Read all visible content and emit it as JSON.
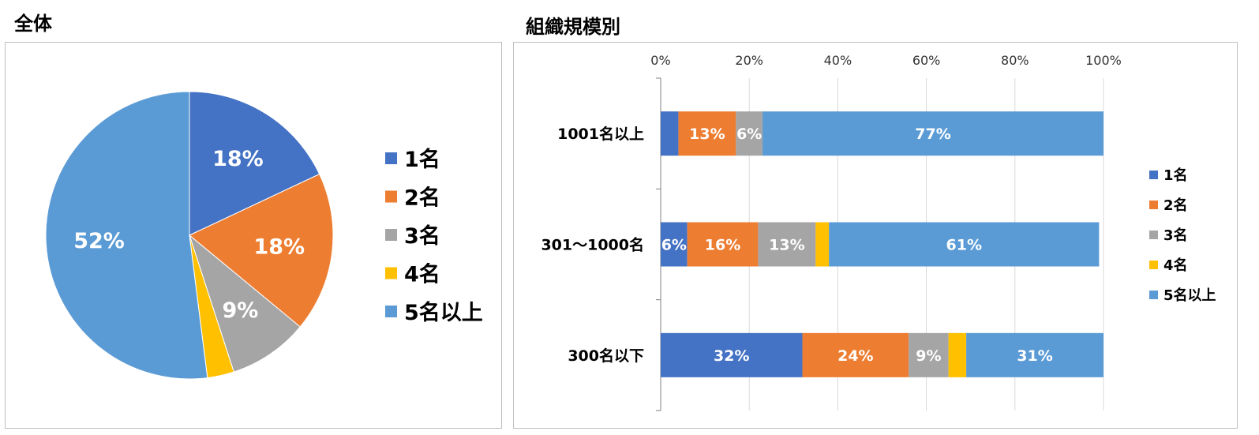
{
  "colors": {
    "series": [
      "#4472C4",
      "#ED7D31",
      "#A5A5A5",
      "#FFC000",
      "#5B9BD5"
    ],
    "gridline": "#D9D9D9",
    "axis": "#808080"
  },
  "chart_data": [
    {
      "type": "pie",
      "title": "全体",
      "categories": [
        "1名",
        "2名",
        "3名",
        "4名",
        "5名以上"
      ],
      "values": [
        18,
        18,
        9,
        3,
        52
      ],
      "data_labels": [
        "18%",
        "18%",
        "9%",
        "",
        "52%"
      ],
      "legend": "right"
    },
    {
      "type": "bar",
      "orientation": "horizontal",
      "stacked": "percent",
      "title": "組織規模別",
      "categories": [
        "1001名以上",
        "301～1000名",
        "300名以下"
      ],
      "x_ticks": [
        "0%",
        "20%",
        "40%",
        "60%",
        "80%",
        "100%"
      ],
      "xlim": [
        0,
        100
      ],
      "grid": true,
      "legend": "right",
      "series": [
        {
          "name": "1名",
          "values": [
            4,
            6,
            32
          ],
          "labels": [
            "",
            "6%",
            "32%"
          ]
        },
        {
          "name": "2名",
          "values": [
            13,
            16,
            24
          ],
          "labels": [
            "13%",
            "16%",
            "24%"
          ]
        },
        {
          "name": "3名",
          "values": [
            6,
            13,
            9
          ],
          "labels": [
            "6%",
            "13%",
            "9%"
          ]
        },
        {
          "name": "4名",
          "values": [
            0,
            3,
            4
          ],
          "labels": [
            "",
            "",
            ""
          ]
        },
        {
          "name": "5名以上",
          "values": [
            77,
            61,
            31
          ],
          "labels": [
            "77%",
            "61%",
            "31%"
          ]
        }
      ]
    }
  ]
}
